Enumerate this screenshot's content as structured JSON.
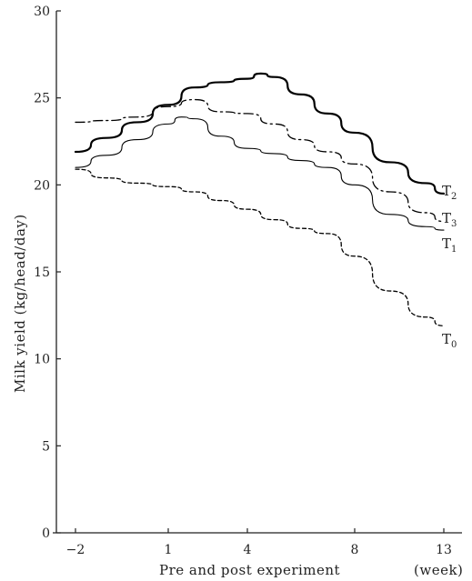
{
  "chart_data": {
    "type": "line",
    "xlabel": "Pre and post experiment",
    "xunit": "(week)",
    "ylabel": "Milk yield (kg/head/day)",
    "ylim": [
      0,
      30
    ],
    "yticks": [
      0,
      5,
      10,
      15,
      20,
      25,
      30
    ],
    "xticks": [
      {
        "label": "−2",
        "value": -2
      },
      {
        "label": "1",
        "value": 1
      },
      {
        "label": "4",
        "value": 4
      },
      {
        "label": "8",
        "value": 8
      },
      {
        "label": "13",
        "value": 13
      }
    ],
    "grid": false,
    "series": [
      {
        "name": "T2",
        "label_main": "T",
        "label_sub": "2",
        "color": "#000000",
        "dash": "",
        "width": 2.2,
        "points": [
          [
            -2,
            21.9
          ],
          [
            -1,
            22.7
          ],
          [
            0,
            23.6
          ],
          [
            1,
            24.6
          ],
          [
            2,
            25.6
          ],
          [
            3,
            25.9
          ],
          [
            4,
            26.1
          ],
          [
            4.5,
            26.4
          ],
          [
            5,
            26.2
          ],
          [
            6,
            25.2
          ],
          [
            7,
            24.1
          ],
          [
            8,
            23.0
          ],
          [
            10,
            21.3
          ],
          [
            12,
            20.1
          ],
          [
            13,
            19.5
          ]
        ]
      },
      {
        "name": "T3",
        "label_main": "T",
        "label_sub": "3",
        "color": "#000000",
        "dash": "10 4 2 4",
        "width": 1.3,
        "points": [
          [
            -2,
            23.6
          ],
          [
            -1,
            23.7
          ],
          [
            0,
            23.9
          ],
          [
            1,
            24.5
          ],
          [
            2,
            24.9
          ],
          [
            3,
            24.2
          ],
          [
            4,
            24.1
          ],
          [
            5,
            23.5
          ],
          [
            6,
            22.6
          ],
          [
            7,
            21.9
          ],
          [
            8,
            21.2
          ],
          [
            10,
            19.6
          ],
          [
            12,
            18.4
          ],
          [
            13,
            17.9
          ]
        ]
      },
      {
        "name": "T1",
        "label_main": "T",
        "label_sub": "1",
        "color": "#000000",
        "dash": "",
        "width": 1.1,
        "points": [
          [
            -2,
            21.0
          ],
          [
            -1,
            21.7
          ],
          [
            0,
            22.6
          ],
          [
            1,
            23.5
          ],
          [
            1.5,
            23.9
          ],
          [
            2,
            23.8
          ],
          [
            3,
            22.8
          ],
          [
            4,
            22.1
          ],
          [
            5,
            21.8
          ],
          [
            6,
            21.4
          ],
          [
            7,
            21.0
          ],
          [
            8,
            20.0
          ],
          [
            10,
            18.3
          ],
          [
            12,
            17.6
          ],
          [
            13,
            17.4
          ]
        ]
      },
      {
        "name": "T0",
        "label_main": "T",
        "label_sub": "0",
        "color": "#000000",
        "dash": "4 3",
        "width": 1.3,
        "points": [
          [
            -2,
            20.9
          ],
          [
            -1,
            20.4
          ],
          [
            0,
            20.1
          ],
          [
            1,
            19.9
          ],
          [
            2,
            19.6
          ],
          [
            3,
            19.1
          ],
          [
            4,
            18.6
          ],
          [
            5,
            18.0
          ],
          [
            6,
            17.5
          ],
          [
            7,
            17.2
          ],
          [
            8,
            15.9
          ],
          [
            10,
            13.9
          ],
          [
            12,
            12.4
          ],
          [
            13,
            11.9
          ]
        ]
      }
    ]
  }
}
